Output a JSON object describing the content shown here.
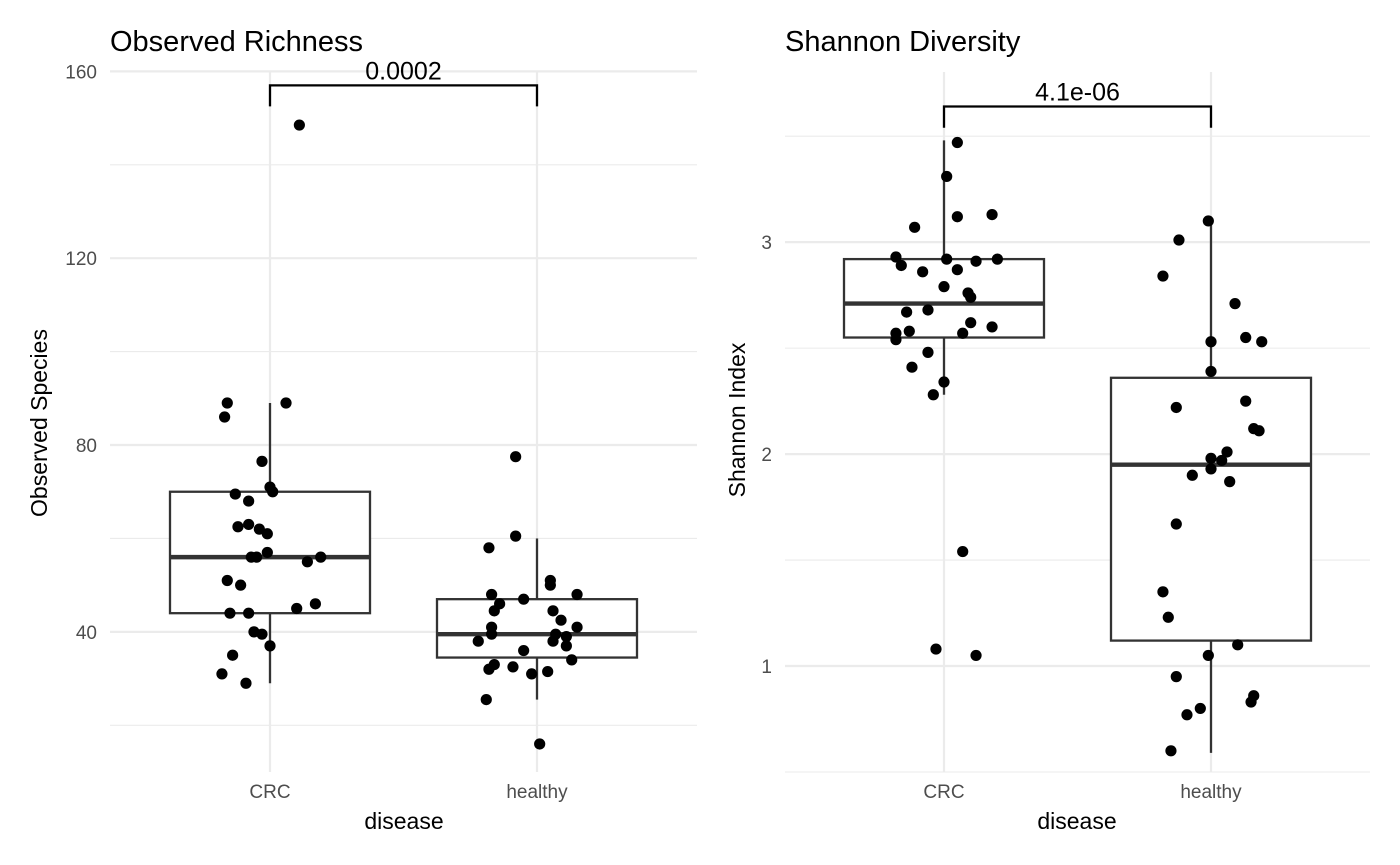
{
  "chart_data": [
    {
      "type": "box",
      "title": "Observed Richness",
      "xlabel": "disease",
      "ylabel": "Observed Species",
      "categories": [
        "CRC",
        "healthy"
      ],
      "ylim": [
        10,
        162
      ],
      "yticks": [
        40,
        80,
        120,
        160
      ],
      "ytick_labels": [
        "40",
        "80",
        "120",
        "160"
      ],
      "grid": true,
      "annotation": {
        "text": "0.0002",
        "from": "CRC",
        "to": "healthy"
      },
      "bracket_y": [
        152.5,
        157
      ],
      "boxes": [
        {
          "category": "CRC",
          "q1": 44,
          "median": 56,
          "q3": 70,
          "whisker_low": 29,
          "whisker_high": 89
        },
        {
          "category": "healthy",
          "q1": 34.5,
          "median": 39.5,
          "q3": 47,
          "whisker_low": 25.5,
          "whisker_high": 60
        }
      ],
      "points": [
        {
          "category": "CRC",
          "jitter": 0.11,
          "value": 148.5
        },
        {
          "category": "CRC",
          "jitter": -0.16,
          "value": 89
        },
        {
          "category": "CRC",
          "jitter": 0.06,
          "value": 89
        },
        {
          "category": "CRC",
          "jitter": -0.17,
          "value": 86
        },
        {
          "category": "CRC",
          "jitter": -0.03,
          "value": 76.5
        },
        {
          "category": "CRC",
          "jitter": 0.0,
          "value": 71
        },
        {
          "category": "CRC",
          "jitter": 0.01,
          "value": 70
        },
        {
          "category": "CRC",
          "jitter": -0.13,
          "value": 69.5
        },
        {
          "category": "CRC",
          "jitter": -0.08,
          "value": 68
        },
        {
          "category": "CRC",
          "jitter": -0.08,
          "value": 63
        },
        {
          "category": "CRC",
          "jitter": -0.12,
          "value": 62.5
        },
        {
          "category": "CRC",
          "jitter": -0.04,
          "value": 62
        },
        {
          "category": "CRC",
          "jitter": -0.01,
          "value": 61
        },
        {
          "category": "CRC",
          "jitter": -0.01,
          "value": 57
        },
        {
          "category": "CRC",
          "jitter": -0.07,
          "value": 56
        },
        {
          "category": "CRC",
          "jitter": -0.05,
          "value": 56
        },
        {
          "category": "CRC",
          "jitter": 0.19,
          "value": 56
        },
        {
          "category": "CRC",
          "jitter": 0.14,
          "value": 55
        },
        {
          "category": "CRC",
          "jitter": -0.16,
          "value": 51
        },
        {
          "category": "CRC",
          "jitter": -0.11,
          "value": 50
        },
        {
          "category": "CRC",
          "jitter": 0.17,
          "value": 46
        },
        {
          "category": "CRC",
          "jitter": 0.1,
          "value": 45
        },
        {
          "category": "CRC",
          "jitter": -0.15,
          "value": 44
        },
        {
          "category": "CRC",
          "jitter": -0.08,
          "value": 44
        },
        {
          "category": "CRC",
          "jitter": -0.06,
          "value": 40
        },
        {
          "category": "CRC",
          "jitter": -0.03,
          "value": 39.5
        },
        {
          "category": "CRC",
          "jitter": 0.0,
          "value": 37
        },
        {
          "category": "CRC",
          "jitter": -0.14,
          "value": 35
        },
        {
          "category": "CRC",
          "jitter": -0.18,
          "value": 31
        },
        {
          "category": "CRC",
          "jitter": -0.09,
          "value": 29
        },
        {
          "category": "healthy",
          "jitter": -0.08,
          "value": 77.5
        },
        {
          "category": "healthy",
          "jitter": -0.08,
          "value": 60.5
        },
        {
          "category": "healthy",
          "jitter": -0.18,
          "value": 58
        },
        {
          "category": "healthy",
          "jitter": 0.05,
          "value": 51
        },
        {
          "category": "healthy",
          "jitter": 0.05,
          "value": 50
        },
        {
          "category": "healthy",
          "jitter": -0.17,
          "value": 48
        },
        {
          "category": "healthy",
          "jitter": 0.15,
          "value": 48
        },
        {
          "category": "healthy",
          "jitter": -0.05,
          "value": 47
        },
        {
          "category": "healthy",
          "jitter": -0.14,
          "value": 46
        },
        {
          "category": "healthy",
          "jitter": -0.16,
          "value": 44.5
        },
        {
          "category": "healthy",
          "jitter": 0.06,
          "value": 44.5
        },
        {
          "category": "healthy",
          "jitter": 0.09,
          "value": 42.5
        },
        {
          "category": "healthy",
          "jitter": -0.17,
          "value": 41
        },
        {
          "category": "healthy",
          "jitter": 0.15,
          "value": 41
        },
        {
          "category": "healthy",
          "jitter": -0.17,
          "value": 39.5
        },
        {
          "category": "healthy",
          "jitter": 0.07,
          "value": 39.5
        },
        {
          "category": "healthy",
          "jitter": 0.11,
          "value": 39
        },
        {
          "category": "healthy",
          "jitter": -0.22,
          "value": 38
        },
        {
          "category": "healthy",
          "jitter": 0.06,
          "value": 38
        },
        {
          "category": "healthy",
          "jitter": 0.11,
          "value": 37
        },
        {
          "category": "healthy",
          "jitter": -0.05,
          "value": 36
        },
        {
          "category": "healthy",
          "jitter": 0.13,
          "value": 34
        },
        {
          "category": "healthy",
          "jitter": -0.16,
          "value": 33
        },
        {
          "category": "healthy",
          "jitter": -0.09,
          "value": 32.5
        },
        {
          "category": "healthy",
          "jitter": -0.18,
          "value": 32
        },
        {
          "category": "healthy",
          "jitter": 0.04,
          "value": 31.5
        },
        {
          "category": "healthy",
          "jitter": -0.02,
          "value": 31
        },
        {
          "category": "healthy",
          "jitter": -0.19,
          "value": 25.5
        },
        {
          "category": "healthy",
          "jitter": 0.01,
          "value": 16
        }
      ]
    },
    {
      "type": "box",
      "title": "Shannon Diversity",
      "xlabel": "disease",
      "ylabel": "Shannon Index",
      "categories": [
        "CRC",
        "healthy"
      ],
      "ylim": [
        0.5,
        3.85
      ],
      "yticks": [
        1,
        2,
        3
      ],
      "ytick_labels": [
        "1",
        "2",
        "3"
      ],
      "grid": true,
      "annotation": {
        "text": "4.1e-06",
        "from": "CRC",
        "to": "healthy"
      },
      "bracket_y": [
        3.54,
        3.64
      ],
      "boxes": [
        {
          "category": "CRC",
          "q1": 2.55,
          "median": 2.71,
          "q3": 2.92,
          "whisker_low": 2.28,
          "whisker_high": 3.48
        },
        {
          "category": "healthy",
          "q1": 1.12,
          "median": 1.95,
          "q3": 2.36,
          "whisker_low": 0.59,
          "whisker_high": 3.1
        }
      ],
      "points": [
        {
          "category": "CRC",
          "jitter": 0.05,
          "value": 3.47
        },
        {
          "category": "CRC",
          "jitter": 0.01,
          "value": 3.31
        },
        {
          "category": "CRC",
          "jitter": 0.18,
          "value": 3.13
        },
        {
          "category": "CRC",
          "jitter": 0.05,
          "value": 3.12
        },
        {
          "category": "CRC",
          "jitter": -0.11,
          "value": 3.07
        },
        {
          "category": "CRC",
          "jitter": -0.18,
          "value": 2.93
        },
        {
          "category": "CRC",
          "jitter": 0.01,
          "value": 2.92
        },
        {
          "category": "CRC",
          "jitter": 0.2,
          "value": 2.92
        },
        {
          "category": "CRC",
          "jitter": 0.12,
          "value": 2.91
        },
        {
          "category": "CRC",
          "jitter": -0.16,
          "value": 2.89
        },
        {
          "category": "CRC",
          "jitter": -0.08,
          "value": 2.86
        },
        {
          "category": "CRC",
          "jitter": 0.05,
          "value": 2.87
        },
        {
          "category": "CRC",
          "jitter": 0.0,
          "value": 2.79
        },
        {
          "category": "CRC",
          "jitter": 0.09,
          "value": 2.76
        },
        {
          "category": "CRC",
          "jitter": 0.1,
          "value": 2.74
        },
        {
          "category": "CRC",
          "jitter": -0.14,
          "value": 2.67
        },
        {
          "category": "CRC",
          "jitter": -0.06,
          "value": 2.68
        },
        {
          "category": "CRC",
          "jitter": 0.1,
          "value": 2.62
        },
        {
          "category": "CRC",
          "jitter": 0.18,
          "value": 2.6
        },
        {
          "category": "CRC",
          "jitter": -0.13,
          "value": 2.58
        },
        {
          "category": "CRC",
          "jitter": -0.18,
          "value": 2.57
        },
        {
          "category": "CRC",
          "jitter": 0.07,
          "value": 2.57
        },
        {
          "category": "CRC",
          "jitter": -0.18,
          "value": 2.54
        },
        {
          "category": "CRC",
          "jitter": -0.06,
          "value": 2.48
        },
        {
          "category": "CRC",
          "jitter": -0.12,
          "value": 2.41
        },
        {
          "category": "CRC",
          "jitter": -0.0,
          "value": 2.34
        },
        {
          "category": "CRC",
          "jitter": -0.04,
          "value": 2.28
        },
        {
          "category": "CRC",
          "jitter": 0.07,
          "value": 1.54
        },
        {
          "category": "CRC",
          "jitter": -0.03,
          "value": 1.08
        },
        {
          "category": "CRC",
          "jitter": 0.12,
          "value": 1.05
        },
        {
          "category": "healthy",
          "jitter": -0.01,
          "value": 3.1
        },
        {
          "category": "healthy",
          "jitter": -0.12,
          "value": 3.01
        },
        {
          "category": "healthy",
          "jitter": -0.18,
          "value": 2.84
        },
        {
          "category": "healthy",
          "jitter": 0.09,
          "value": 2.71
        },
        {
          "category": "healthy",
          "jitter": 0.13,
          "value": 2.55
        },
        {
          "category": "healthy",
          "jitter": 0.19,
          "value": 2.53
        },
        {
          "category": "healthy",
          "jitter": 0.0,
          "value": 2.53
        },
        {
          "category": "healthy",
          "jitter": 0.0,
          "value": 2.39
        },
        {
          "category": "healthy",
          "jitter": 0.13,
          "value": 2.25
        },
        {
          "category": "healthy",
          "jitter": -0.13,
          "value": 2.22
        },
        {
          "category": "healthy",
          "jitter": 0.18,
          "value": 2.11
        },
        {
          "category": "healthy",
          "jitter": 0.16,
          "value": 2.12
        },
        {
          "category": "healthy",
          "jitter": 0.06,
          "value": 2.01
        },
        {
          "category": "healthy",
          "jitter": 0.0,
          "value": 1.98
        },
        {
          "category": "healthy",
          "jitter": 0.04,
          "value": 1.97
        },
        {
          "category": "healthy",
          "jitter": 0.0,
          "value": 1.93
        },
        {
          "category": "healthy",
          "jitter": -0.07,
          "value": 1.9
        },
        {
          "category": "healthy",
          "jitter": 0.07,
          "value": 1.87
        },
        {
          "category": "healthy",
          "jitter": -0.13,
          "value": 1.67
        },
        {
          "category": "healthy",
          "jitter": -0.18,
          "value": 1.35
        },
        {
          "category": "healthy",
          "jitter": -0.16,
          "value": 1.23
        },
        {
          "category": "healthy",
          "jitter": 0.1,
          "value": 1.1
        },
        {
          "category": "healthy",
          "jitter": -0.01,
          "value": 1.05
        },
        {
          "category": "healthy",
          "jitter": -0.13,
          "value": 0.95
        },
        {
          "category": "healthy",
          "jitter": 0.16,
          "value": 0.86
        },
        {
          "category": "healthy",
          "jitter": 0.15,
          "value": 0.83
        },
        {
          "category": "healthy",
          "jitter": -0.04,
          "value": 0.8
        },
        {
          "category": "healthy",
          "jitter": -0.09,
          "value": 0.77
        },
        {
          "category": "healthy",
          "jitter": -0.15,
          "value": 0.6
        }
      ]
    }
  ]
}
